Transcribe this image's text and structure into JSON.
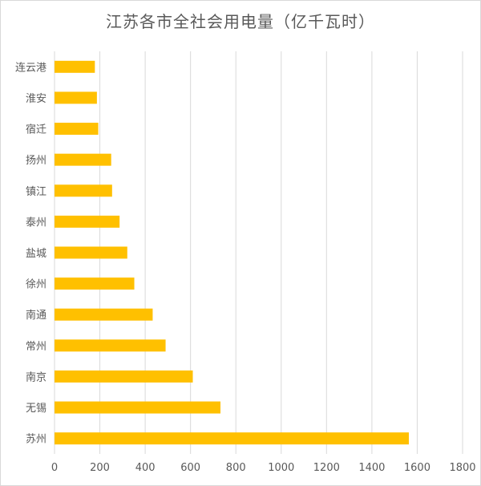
{
  "chart_data": {
    "type": "bar",
    "orientation": "horizontal",
    "title": "江苏各市全社会用电量（亿千瓦时）",
    "categories": [
      "连云港",
      "淮安",
      "宿迁",
      "扬州",
      "镇江",
      "泰州",
      "盐城",
      "徐州",
      "南通",
      "常州",
      "南京",
      "无锡",
      "苏州"
    ],
    "values": [
      178,
      187,
      193,
      250,
      254,
      287,
      321,
      352,
      433,
      490,
      610,
      732,
      1563
    ],
    "xlim": [
      0,
      1800
    ],
    "xticks": [
      "0",
      "200",
      "400",
      "600",
      "800",
      "1000",
      "1200",
      "1400",
      "1600",
      "1800"
    ],
    "grid": "vertical",
    "bar_color": "#FFC000",
    "grid_color": "#d9d9d9"
  }
}
